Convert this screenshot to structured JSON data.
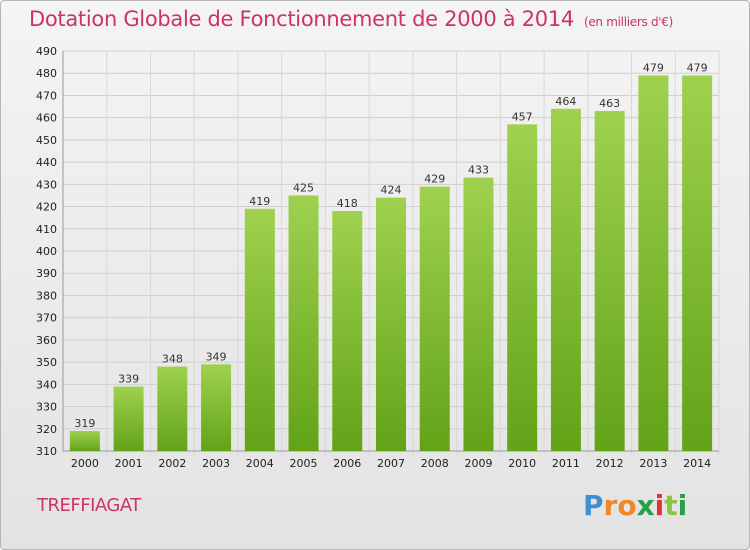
{
  "header": {
    "title": "Dotation Globale de Fonctionnement de 2000 à 2014",
    "unit": "(en milliers d'€)"
  },
  "commune": "TREFFIAGAT",
  "logo": {
    "letters": [
      "P",
      "r",
      "o",
      "x",
      "i",
      "t",
      "i"
    ],
    "colors": [
      "#3d8fd1",
      "#f0862a",
      "#f0862a",
      "#2a9e4a",
      "#e6312f",
      "#8bc443",
      "#2a9e4a"
    ]
  },
  "chart_data": {
    "type": "bar",
    "title": "Dotation Globale de Fonctionnement de 2000 à 2014",
    "subtitle": "(en milliers d'€)",
    "categories": [
      "2000",
      "2001",
      "2002",
      "2003",
      "2004",
      "2005",
      "2006",
      "2007",
      "2008",
      "2009",
      "2010",
      "2011",
      "2012",
      "2013",
      "2014"
    ],
    "values": [
      319,
      339,
      348,
      349,
      419,
      425,
      418,
      424,
      429,
      433,
      457,
      464,
      463,
      479,
      479
    ],
    "ylim": [
      310,
      490
    ],
    "yticks": [
      310,
      320,
      330,
      340,
      350,
      360,
      370,
      380,
      390,
      400,
      410,
      420,
      430,
      440,
      450,
      460,
      470,
      480,
      490
    ],
    "grid": true,
    "bar_color": "#7cbf2d",
    "xlabel": "",
    "ylabel": ""
  }
}
